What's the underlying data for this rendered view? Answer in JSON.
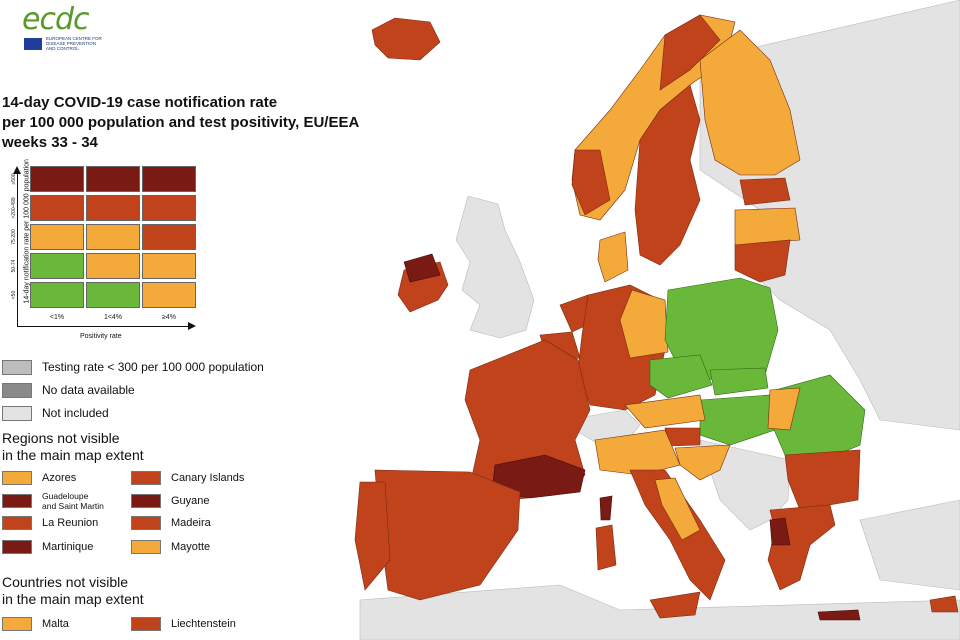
{
  "logo": {
    "text": "ecdc",
    "subtitle": "EUROPEAN CENTRE FOR DISEASE PREVENTION AND CONTROL"
  },
  "title": {
    "line1": "14-day COVID-19 case notification rate",
    "line2": "per 100 000 population and test positivity, EU/EEA",
    "line3": "weeks 33 - 34"
  },
  "colors": {
    "dark_red": "#7a1a14",
    "red": "#c0431c",
    "orange": "#f4aa3a",
    "green": "#69b83a",
    "testing": "#bdbdbd",
    "nodata": "#8a8a8a",
    "notincluded": "#e3e3e3",
    "sea": "#ffffff"
  },
  "matrix": {
    "y_axis_label": "14-day notification rate per 100 000 population",
    "x_axis_label": "Positivity rate",
    "rows": [
      "≥500",
      ">200-499",
      "75-200",
      "50-74",
      "<50"
    ],
    "columns": [
      "<1%",
      "1<4%",
      "≥4%"
    ],
    "cells": [
      [
        "dark_red",
        "dark_red",
        "dark_red"
      ],
      [
        "red",
        "red",
        "red"
      ],
      [
        "orange",
        "orange",
        "red"
      ],
      [
        "green",
        "orange",
        "orange"
      ],
      [
        "green",
        "green",
        "orange"
      ]
    ]
  },
  "legend": [
    {
      "label": "Testing rate < 300 per 100 000 population",
      "color": "testing"
    },
    {
      "label": "No data available",
      "color": "nodata"
    },
    {
      "label": "Not included",
      "color": "notincluded"
    }
  ],
  "regions_header": {
    "line1": "Regions not visible",
    "line2": "in the main map extent"
  },
  "regions": [
    {
      "label": "Azores",
      "color": "orange"
    },
    {
      "label": "Canary Islands",
      "color": "red"
    },
    {
      "label": "Guadeloupe and Saint Martin",
      "line1": "Guadeloupe",
      "line2": "and Saint Martin",
      "color": "dark_red"
    },
    {
      "label": "Guyane",
      "color": "dark_red"
    },
    {
      "label": "La Reunion",
      "color": "red"
    },
    {
      "label": "Madeira",
      "color": "red"
    },
    {
      "label": "Martinique",
      "color": "dark_red"
    },
    {
      "label": "Mayotte",
      "color": "orange"
    }
  ],
  "countries_header": {
    "line1": "Countries not visible",
    "line2": "in the main map extent"
  },
  "countries": [
    {
      "label": "Malta",
      "color": "orange"
    },
    {
      "label": "Liechtenstein",
      "color": "red"
    }
  ]
}
